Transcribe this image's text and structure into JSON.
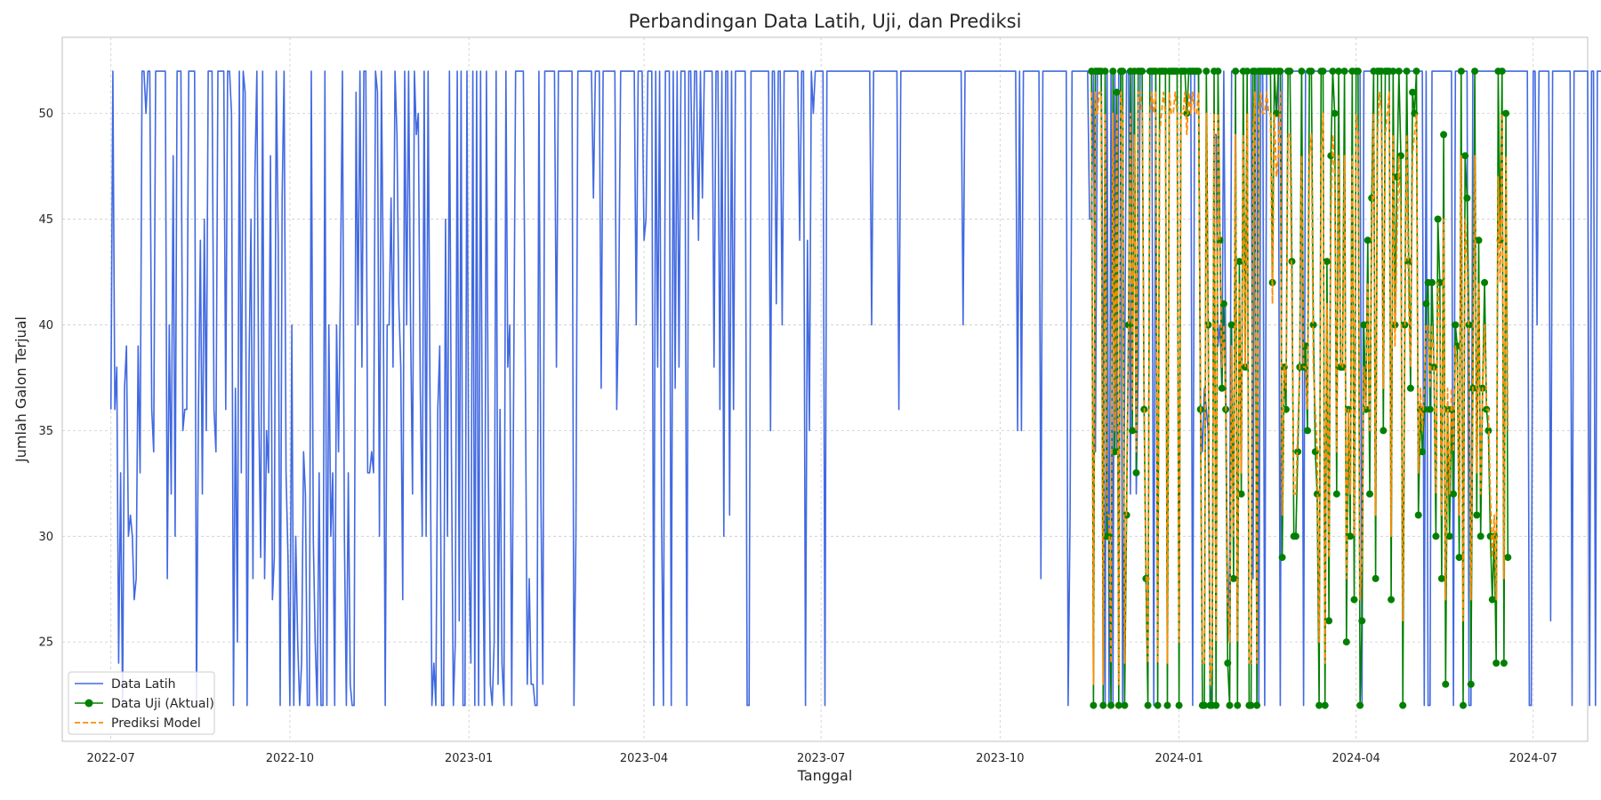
{
  "chart_data": {
    "type": "line",
    "title": "Perbandingan Data Latih, Uji, dan Prediksi",
    "xlabel": "Tanggal",
    "ylabel": "Jumlah Galon Terjual",
    "x_range": [
      "2022-06-06",
      "2024-07-29"
    ],
    "ylim": [
      20.3,
      53.6
    ],
    "x_ticks": [
      {
        "date": "2022-07-01",
        "label": "2022-07"
      },
      {
        "date": "2022-10-01",
        "label": "2022-10"
      },
      {
        "date": "2023-01-01",
        "label": "2023-01"
      },
      {
        "date": "2023-04-01",
        "label": "2023-04"
      },
      {
        "date": "2023-07-01",
        "label": "2023-07"
      },
      {
        "date": "2023-10-01",
        "label": "2023-10"
      },
      {
        "date": "2024-01-01",
        "label": "2024-01"
      },
      {
        "date": "2024-04-01",
        "label": "2024-04"
      },
      {
        "date": "2024-07-01",
        "label": "2024-07"
      }
    ],
    "y_ticks": [
      25,
      30,
      35,
      40,
      45,
      50
    ],
    "grid": true,
    "legend_position": "lower-left",
    "series": [
      {
        "name": "Data Latih",
        "color": "#4169e1",
        "style": "solid",
        "start_date": "2022-07-01",
        "values": [
          36,
          52,
          36,
          38,
          24,
          33,
          22,
          37,
          39,
          30,
          31,
          30,
          27,
          28,
          39,
          33,
          52,
          52,
          50,
          52,
          52,
          36,
          34,
          52,
          52,
          52,
          52,
          52,
          52,
          28,
          40,
          32,
          48,
          30,
          52,
          52,
          52,
          35,
          36,
          36,
          52,
          52,
          52,
          52,
          22,
          36,
          44,
          32,
          45,
          35,
          52,
          52,
          52,
          36,
          34,
          52,
          52,
          52,
          52,
          36,
          52,
          52,
          50,
          22,
          37,
          25,
          52,
          33,
          52,
          51,
          22,
          38,
          45,
          28,
          47,
          52,
          36,
          29,
          52,
          28,
          35,
          33,
          48,
          27,
          29,
          52,
          44,
          22,
          46,
          52,
          33,
          29,
          22,
          40,
          22,
          30,
          25,
          22,
          24,
          34,
          32,
          22,
          22,
          52,
          30,
          25,
          22,
          33,
          22,
          22,
          52,
          22,
          40,
          30,
          33,
          22,
          40,
          34,
          42,
          52,
          30,
          22,
          33,
          23,
          22,
          22,
          51,
          40,
          52,
          38,
          52,
          52,
          33,
          33,
          34,
          33,
          52,
          51,
          30,
          52,
          42,
          22,
          40,
          40,
          46,
          38,
          52,
          49,
          41,
          38,
          27,
          52,
          40,
          52,
          40,
          32,
          52,
          49,
          50,
          37,
          30,
          52,
          30,
          52,
          37,
          22,
          24,
          22,
          36,
          39,
          22,
          22,
          45,
          30,
          52,
          34,
          22,
          25,
          52,
          26,
          52,
          22,
          22,
          52,
          29,
          24,
          52,
          22,
          52,
          22,
          52,
          31,
          22,
          52,
          33,
          23,
          22,
          25,
          52,
          23,
          36,
          24,
          22,
          52,
          38,
          40,
          22,
          37,
          52,
          52,
          52,
          52,
          52,
          38,
          23,
          28,
          23,
          23,
          22,
          22,
          52,
          32,
          23,
          52,
          52,
          52,
          52,
          52,
          52,
          38,
          52,
          52,
          52,
          52,
          52,
          52,
          52,
          52,
          22,
          30,
          52,
          52,
          52,
          52,
          52,
          52,
          52,
          52,
          46,
          52,
          52,
          52,
          37,
          52,
          52,
          52,
          52,
          52,
          52,
          52,
          36,
          41,
          52,
          52,
          52,
          52,
          52,
          52,
          52,
          52,
          40,
          52,
          52,
          52,
          44,
          45,
          52,
          52,
          52,
          22,
          52,
          38,
          52,
          31,
          22,
          52,
          52,
          52,
          22,
          52,
          37,
          52,
          38,
          52,
          52,
          52,
          22,
          52,
          52,
          45,
          52,
          52,
          44,
          52,
          46,
          52,
          52,
          52,
          52,
          52,
          38,
          52,
          52,
          36,
          52,
          30,
          52,
          52,
          31,
          52,
          36,
          52,
          52,
          52,
          52,
          52,
          52,
          22,
          22,
          52,
          52,
          52,
          52,
          52,
          52,
          52,
          52,
          52,
          52,
          35,
          52,
          52,
          41,
          52,
          52,
          40,
          52,
          52,
          52,
          52,
          52,
          52,
          52,
          52,
          44,
          52,
          52,
          22,
          44,
          35,
          52,
          50,
          52,
          52,
          52,
          52,
          52,
          22,
          52,
          52,
          52,
          52,
          52,
          52,
          52,
          52,
          52,
          52,
          52,
          52,
          52,
          52,
          52,
          52,
          52,
          52,
          52,
          52,
          52,
          52,
          52,
          40,
          52,
          52,
          52,
          52,
          52,
          52,
          52,
          52,
          52,
          52,
          52,
          52,
          52,
          36,
          52,
          52,
          52,
          52,
          52,
          52,
          52,
          52,
          52,
          52,
          52,
          52,
          52,
          52,
          52,
          52,
          52,
          52,
          52,
          52,
          52,
          52,
          52,
          52,
          52,
          52,
          52,
          52,
          52,
          52,
          52,
          52,
          40,
          52,
          52,
          52,
          52,
          52,
          52,
          52,
          52,
          52,
          52,
          52,
          52,
          52,
          52,
          52,
          52,
          52,
          52,
          52,
          52,
          52,
          52,
          52,
          52,
          52,
          52,
          52,
          35,
          52,
          35,
          52,
          52,
          52,
          52,
          52,
          52,
          52,
          52,
          52,
          28,
          52,
          52,
          52,
          52,
          52,
          52,
          52,
          52,
          52,
          52,
          52,
          52,
          52,
          22,
          31,
          52,
          52,
          52,
          52,
          52,
          52,
          52,
          52,
          52,
          45,
          45,
          52,
          34,
          52,
          52,
          52,
          40,
          22,
          52,
          22,
          52,
          22,
          52,
          34,
          52,
          52,
          22,
          37,
          52,
          52,
          32,
          52,
          52,
          32,
          38,
          52,
          52,
          52,
          52,
          52,
          52,
          52,
          22,
          52,
          52,
          52,
          52,
          52,
          52,
          52,
          52,
          52,
          52,
          52,
          52,
          52,
          52,
          52,
          52,
          52,
          52,
          52,
          22,
          52,
          52,
          52,
          36,
          34,
          37,
          36,
          35,
          22,
          23,
          49,
          49,
          39,
          40,
          37,
          52,
          38,
          25,
          29,
          52,
          52,
          52,
          52,
          52,
          52,
          52,
          52,
          52,
          52,
          52,
          28,
          52,
          52,
          22,
          52,
          52,
          22,
          52,
          52,
          52,
          52,
          52,
          52,
          52,
          22,
          52,
          52,
          52,
          52,
          52,
          52,
          52,
          52,
          52,
          52,
          52,
          22,
          52,
          52,
          52,
          52,
          52,
          52,
          52,
          52,
          52,
          52,
          52,
          52,
          52,
          52,
          52,
          52,
          52,
          52,
          52,
          52,
          52,
          52,
          52,
          52,
          52,
          52,
          52,
          52,
          52,
          22,
          52,
          52,
          52,
          52,
          52,
          52,
          52,
          52,
          52,
          52,
          52,
          52,
          52,
          52,
          52,
          52,
          52,
          52,
          52,
          52,
          52,
          52,
          52,
          52,
          52,
          52,
          52,
          52,
          52,
          52,
          52,
          22,
          52,
          22,
          22,
          52,
          52,
          52,
          52,
          52,
          52,
          52,
          52,
          52,
          52,
          52,
          22,
          52,
          52,
          52,
          52,
          52,
          52,
          52,
          22,
          22,
          52,
          52,
          52,
          52,
          52,
          52,
          52,
          52,
          52,
          52,
          52,
          52,
          52,
          52,
          52,
          52,
          52,
          52,
          52,
          52,
          52,
          52,
          52,
          52,
          52,
          52,
          52,
          52,
          52,
          22,
          22,
          52,
          52,
          40,
          52,
          52,
          52,
          52,
          52,
          52,
          26,
          52,
          52,
          52,
          52,
          52,
          52,
          52,
          52,
          52,
          52,
          22,
          52,
          52,
          52,
          52,
          52,
          52,
          52,
          52,
          22,
          52,
          52,
          22,
          52,
          52,
          52,
          52,
          52,
          52,
          52,
          52,
          52,
          52,
          52,
          52,
          22,
          22,
          52,
          52,
          52,
          52,
          52,
          52,
          52,
          52,
          52,
          52,
          52,
          52,
          52,
          52,
          52,
          52,
          22,
          52,
          52,
          52,
          52,
          52,
          52,
          52,
          52,
          52,
          52,
          52,
          52,
          52,
          52,
          52,
          52,
          52,
          52,
          52,
          52,
          52,
          52,
          52,
          52,
          52,
          52,
          52,
          52,
          52,
          52,
          52,
          22,
          24,
          52,
          52
        ]
      },
      {
        "name": "Data Uji (Aktual)",
        "color": "#008000",
        "style": "solid-markers",
        "start_date": "2023-11-17",
        "values": [
          52,
          22,
          52,
          52,
          52,
          52,
          22,
          52,
          30,
          30,
          22,
          52,
          34,
          51,
          22,
          52,
          52,
          22,
          31,
          40,
          52,
          35,
          52,
          33,
          52,
          52,
          52,
          36,
          28,
          22,
          52,
          52,
          52,
          52,
          22,
          52,
          52,
          52,
          52,
          22,
          52,
          52,
          52,
          52,
          52,
          22,
          52,
          52,
          52,
          50,
          52,
          52,
          52,
          52,
          52,
          52,
          36,
          22,
          22,
          52,
          40,
          22,
          22,
          52,
          22,
          52,
          44,
          37,
          41,
          36,
          24,
          22,
          40,
          28,
          52,
          22,
          43,
          32,
          52,
          38,
          52,
          22,
          22,
          52,
          52,
          22,
          52,
          52,
          52,
          52,
          52,
          52,
          52,
          42,
          52,
          50,
          52,
          52,
          29,
          38,
          36,
          52,
          52,
          43,
          30,
          30,
          34,
          38,
          52,
          38,
          39,
          35,
          52,
          52,
          40,
          34,
          32,
          22,
          52,
          52,
          22,
          43,
          26,
          48,
          52,
          50,
          32,
          52,
          38,
          38,
          52,
          25,
          36,
          30,
          52,
          27,
          52,
          52,
          22,
          26,
          40,
          36,
          44,
          32,
          46,
          52,
          28,
          52,
          52,
          52,
          35,
          52,
          52,
          52,
          27,
          52,
          40,
          47,
          52,
          48,
          22,
          40,
          52,
          43,
          37,
          51,
          50,
          52,
          31,
          36,
          34,
          36,
          41,
          42,
          36,
          42,
          38,
          30,
          45,
          42,
          28,
          49,
          23,
          36,
          30,
          36,
          32,
          40,
          39,
          29,
          52,
          22,
          48,
          46,
          40,
          23,
          37,
          52,
          31,
          44,
          30,
          37,
          42,
          36,
          35,
          30,
          27,
          30,
          24,
          52,
          44,
          52,
          24,
          50,
          29
        ]
      },
      {
        "name": "Prediksi Model",
        "color": "#ff8c00",
        "style": "dashed",
        "start_date": "2023-11-17",
        "values": [
          51,
          23,
          51,
          50,
          51,
          51,
          23,
          50,
          31,
          31,
          24,
          50,
          35,
          50,
          23,
          51,
          50,
          24,
          32,
          39,
          50,
          36,
          49,
          34,
          51,
          51,
          50,
          37,
          29,
          24,
          50,
          51,
          50,
          51,
          24,
          49,
          50,
          51,
          50,
          24,
          51,
          50,
          50,
          51,
          50,
          25,
          50,
          50,
          51,
          49,
          51,
          50,
          51,
          50,
          50,
          51,
          37,
          24,
          24,
          50,
          39,
          23,
          24,
          50,
          25,
          50,
          43,
          38,
          40,
          37,
          27,
          25,
          39,
          30,
          49,
          25,
          42,
          33,
          49,
          38,
          50,
          24,
          24,
          49,
          51,
          24,
          50,
          51,
          50,
          50,
          51,
          50,
          50,
          41,
          50,
          47,
          48,
          51,
          31,
          38,
          37,
          49,
          49,
          41,
          32,
          32,
          35,
          38,
          48,
          38,
          38,
          36,
          48,
          49,
          38,
          36,
          34,
          25,
          48,
          50,
          24,
          41,
          29,
          45,
          49,
          47,
          34,
          48,
          38,
          38,
          48,
          28,
          36,
          32,
          48,
          30,
          50,
          49,
          27,
          29,
          38,
          36,
          42,
          35,
          44,
          50,
          31,
          49,
          51,
          50,
          37,
          49,
          50,
          51,
          30,
          49,
          39,
          44,
          48,
          45,
          26,
          39,
          49,
          41,
          38,
          48,
          49,
          50,
          33,
          37,
          35,
          37,
          40,
          40,
          37,
          40,
          38,
          32,
          42,
          40,
          31,
          45,
          27,
          37,
          32,
          37,
          34,
          39,
          38,
          31,
          48,
          26,
          45,
          43,
          39,
          27,
          37,
          48,
          33,
          42,
          32,
          37,
          40,
          36,
          36,
          32,
          29,
          31,
          27,
          47,
          42,
          50,
          28,
          48,
          35
        ]
      }
    ]
  }
}
